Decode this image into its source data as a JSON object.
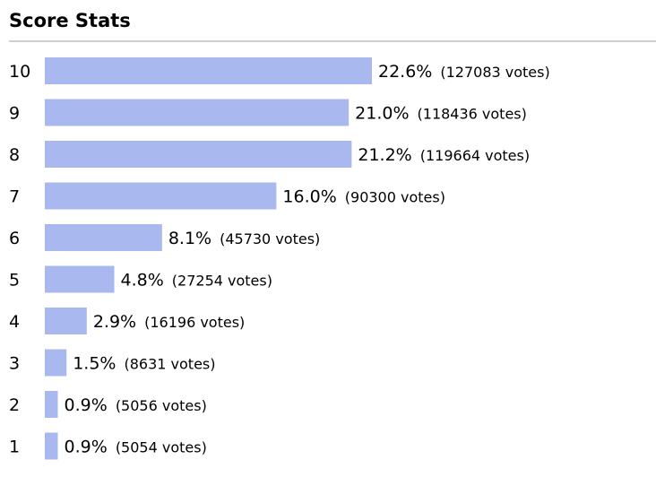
{
  "header": {
    "title": "Score Stats"
  },
  "colors": {
    "bar_fill": "#a9b9ef",
    "divider": "#cfcfcf"
  },
  "chart_data": {
    "type": "bar",
    "orientation": "horizontal",
    "title": "Score Stats",
    "xlabel": "",
    "ylabel": "",
    "xlim": [
      0,
      22.6
    ],
    "grid": false,
    "categories": [
      "10",
      "9",
      "8",
      "7",
      "6",
      "5",
      "4",
      "3",
      "2",
      "1"
    ],
    "values": [
      22.6,
      21.0,
      21.2,
      16.0,
      8.1,
      4.8,
      2.9,
      1.5,
      0.9,
      0.9
    ],
    "value_labels": [
      "22.6%",
      "21.0%",
      "21.2%",
      "16.0%",
      "8.1%",
      "4.8%",
      "2.9%",
      "1.5%",
      "0.9%",
      "0.9%"
    ],
    "vote_labels": [
      "(127083 votes)",
      "(118436 votes)",
      "(119664 votes)",
      "(90300 votes)",
      "(45730 votes)",
      "(27254 votes)",
      "(16196 votes)",
      "(8631 votes)",
      "(5056 votes)",
      "(5054 votes)"
    ],
    "votes": [
      127083,
      118436,
      119664,
      90300,
      45730,
      27254,
      16196,
      8631,
      5056,
      5054
    ]
  }
}
